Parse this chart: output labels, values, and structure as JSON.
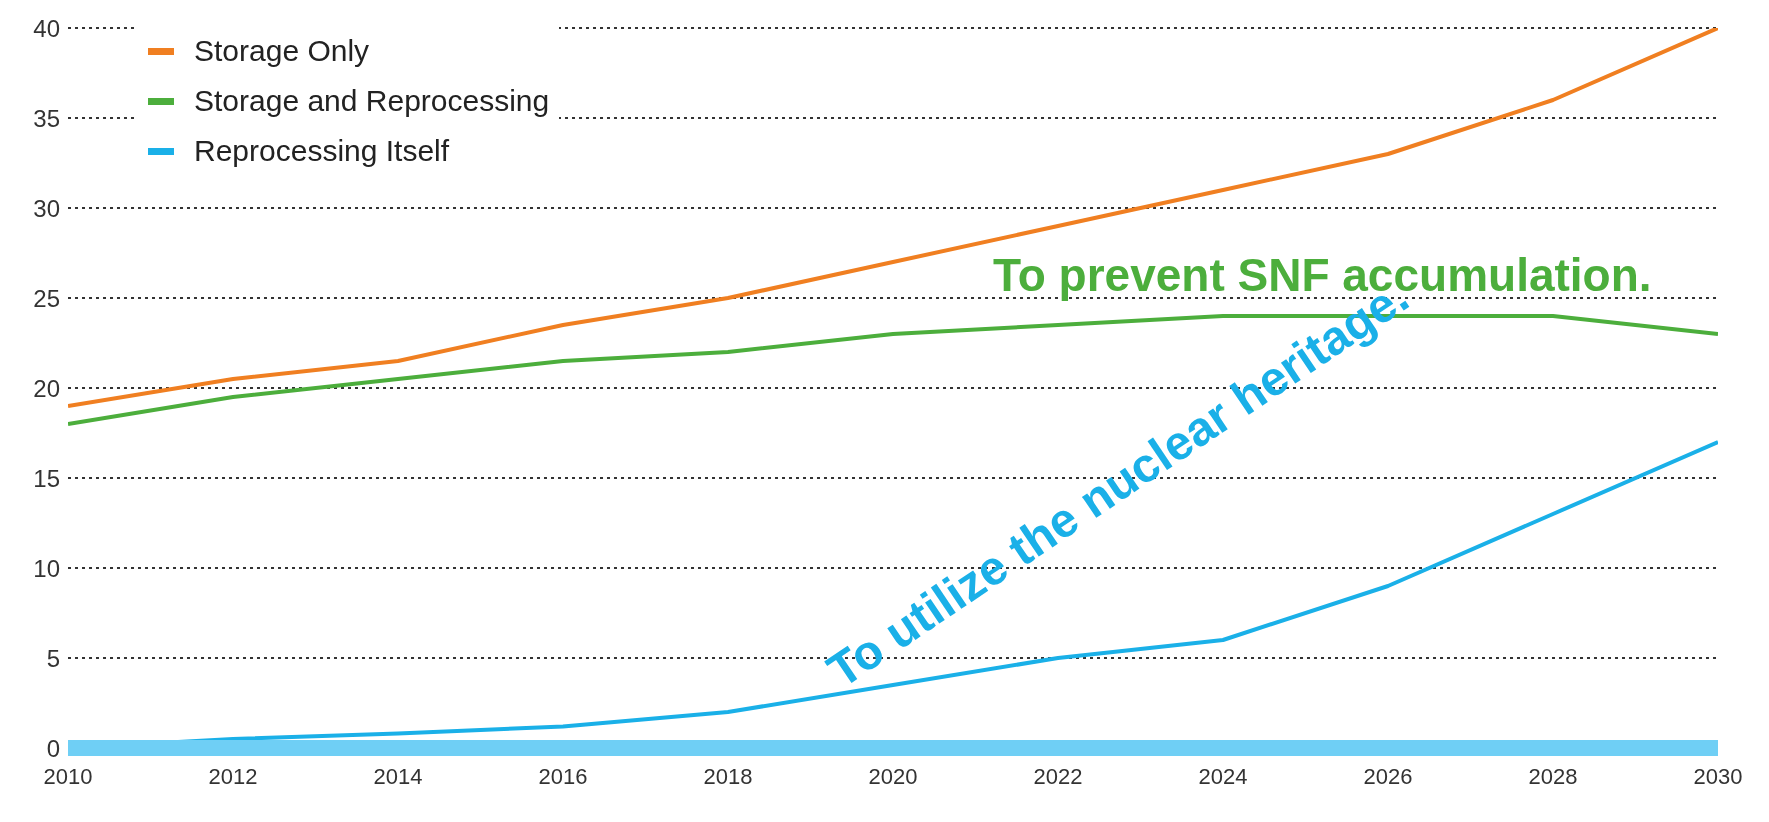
{
  "chart_data": {
    "type": "line",
    "x": [
      2010,
      2012,
      2014,
      2016,
      2018,
      2020,
      2022,
      2024,
      2026,
      2028,
      2030
    ],
    "series": [
      {
        "name": "Storage Only",
        "color": "#f07f21",
        "values": [
          19,
          20.5,
          21.5,
          23.5,
          25,
          27,
          29,
          31,
          33,
          36,
          40
        ]
      },
      {
        "name": "Storage and Reprocessing",
        "color": "#4cae3c",
        "values": [
          18,
          19.5,
          20.5,
          21.5,
          22,
          23,
          23.5,
          24,
          24,
          24,
          23
        ]
      },
      {
        "name": "Reprocessing Itself",
        "color": "#1ab0e8",
        "values": [
          0,
          0.5,
          0.8,
          1.2,
          2,
          3.5,
          5,
          6,
          9,
          13,
          17
        ]
      }
    ],
    "xlim": [
      2010,
      2030
    ],
    "xticks": [
      2010,
      2012,
      2014,
      2016,
      2018,
      2020,
      2022,
      2024,
      2026,
      2028,
      2030
    ],
    "ylim": [
      0,
      40
    ],
    "yticks": [
      0,
      5,
      10,
      15,
      20,
      25,
      30,
      35,
      40
    ],
    "grid": "y",
    "legend": "top left",
    "marker": "none",
    "line_style": "solid",
    "annotations": [
      "To prevent SNF accumulation.",
      "To utilize the nuclear heritage."
    ]
  }
}
